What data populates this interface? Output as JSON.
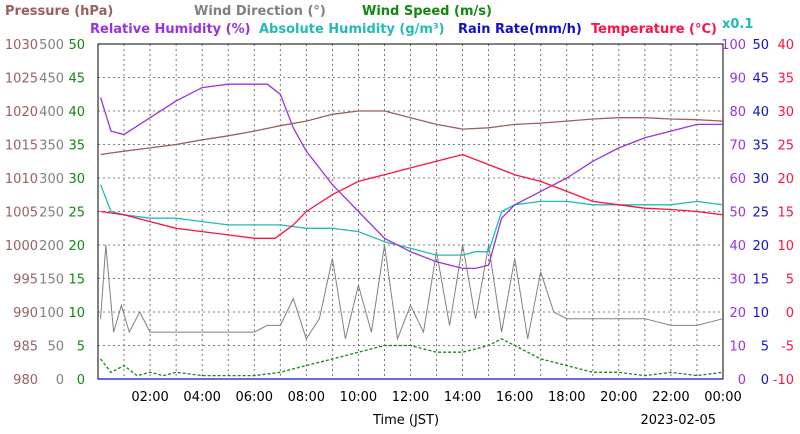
{
  "chart_data": {
    "type": "line",
    "date": "2023-02-05",
    "xlabel": "Time (JST)",
    "x_ticks": [
      "02:00",
      "04:00",
      "06:00",
      "08:00",
      "10:00",
      "12:00",
      "14:00",
      "16:00",
      "18:00",
      "20:00",
      "22:00",
      "00:00"
    ],
    "x_range_hours": [
      0,
      24
    ],
    "grid": true,
    "legend_entries": [
      {
        "label": "Pressure (hPa)",
        "color": "#9a6060"
      },
      {
        "label": "Wind Direction (°)",
        "color": "#808080"
      },
      {
        "label": "Wind Speed (m/s)",
        "color": "#118811"
      },
      {
        "label": "Relative Humidity (%)",
        "color": "#9933dd"
      },
      {
        "label": "Absolute Humidity (g/m³)",
        "color": "#22bbbb"
      },
      {
        "label": "Rain Rate(mm/h)",
        "color": "#1111cc"
      },
      {
        "label": "Temperature (°C)",
        "color": "#ff1144"
      }
    ],
    "ah_scale_note": "x0.1",
    "axes": {
      "pressure": {
        "color": "#9a6060",
        "ticks": [
          "1030",
          "1025",
          "1020",
          "1015",
          "1010",
          "1005",
          "1000",
          "995",
          "990",
          "985",
          "980"
        ],
        "range": [
          980,
          1030
        ]
      },
      "wind_direction": {
        "color": "#808080",
        "ticks": [
          "500",
          "450",
          "400",
          "350",
          "300",
          "250",
          "200",
          "150",
          "100",
          "50",
          "0"
        ],
        "range": [
          0,
          500
        ]
      },
      "wind_speed": {
        "color": "#118811",
        "ticks": [
          "50",
          "45",
          "40",
          "35",
          "30",
          "25",
          "20",
          "15",
          "10",
          "5",
          "0"
        ],
        "range": [
          0,
          50
        ]
      },
      "humidity": {
        "color": "#9933dd",
        "ticks": [
          "100",
          "90",
          "80",
          "70",
          "60",
          "50",
          "40",
          "30",
          "20",
          "10",
          "0"
        ],
        "range": [
          0,
          100
        ]
      },
      "rain_rate": {
        "color": "#1111cc",
        "ticks": [
          "50",
          "45",
          "40",
          "35",
          "30",
          "25",
          "20",
          "15",
          "10",
          "5",
          "0"
        ],
        "range": [
          0,
          50
        ]
      },
      "temperature": {
        "color": "#ff1144",
        "ticks": [
          "40",
          "35",
          "30",
          "25",
          "20",
          "15",
          "10",
          "5",
          "0",
          "-5",
          "-10"
        ],
        "range": [
          -10,
          40
        ]
      }
    },
    "series": [
      {
        "name": "Pressure (hPa)",
        "axis": "pressure",
        "color": "#9a6060",
        "x": [
          0.1,
          1,
          2,
          3,
          4,
          5,
          6,
          7,
          8,
          9,
          10,
          11,
          12,
          13,
          14,
          15,
          16,
          17,
          18,
          19,
          20,
          21,
          22,
          23,
          24
        ],
        "y": [
          1013.5,
          1014,
          1014.5,
          1015,
          1015.7,
          1016.3,
          1017,
          1017.8,
          1018.5,
          1019.5,
          1020,
          1020,
          1019,
          1018,
          1017.3,
          1017.5,
          1018,
          1018.2,
          1018.5,
          1018.8,
          1019,
          1019,
          1018.8,
          1018.7,
          1018.5
        ]
      },
      {
        "name": "Relative Humidity (%)",
        "axis": "humidity",
        "color": "#9933dd",
        "x": [
          0.1,
          0.5,
          1,
          2,
          3,
          4,
          5,
          6,
          6.5,
          7,
          7.5,
          8,
          8.5,
          9,
          9.5,
          10,
          11,
          12,
          13,
          14,
          14.5,
          15,
          15.5,
          16,
          17,
          18,
          19,
          20,
          21,
          22,
          23,
          24
        ],
        "y": [
          84,
          74,
          73,
          78,
          83,
          87,
          88,
          88,
          88,
          85,
          75,
          68,
          63,
          58,
          54,
          50,
          42,
          38,
          35,
          33,
          33,
          34,
          48,
          52,
          56,
          60,
          65,
          69,
          72,
          74,
          76,
          76
        ]
      },
      {
        "name": "Absolute Humidity (g/m³)",
        "axis": "humidity",
        "color": "#22bbbb",
        "x": [
          0.1,
          0.5,
          1,
          2,
          3,
          4,
          5,
          6,
          7,
          8,
          9,
          10,
          11,
          12,
          13,
          14,
          14.5,
          15,
          15.5,
          16,
          17,
          18,
          19,
          20,
          21,
          22,
          23,
          24
        ],
        "y": [
          58,
          50,
          49,
          48,
          48,
          47,
          46,
          46,
          46,
          45,
          45,
          44,
          41,
          39,
          37,
          37,
          38,
          38,
          50,
          52,
          53,
          53,
          52,
          52,
          52,
          52,
          53,
          52
        ]
      },
      {
        "name": "Temperature (°C)",
        "axis": "temperature",
        "color": "#ff1144",
        "x": [
          0.1,
          1,
          2,
          3,
          4,
          5,
          6,
          6.8,
          7.5,
          8,
          9,
          10,
          11,
          12,
          13,
          14,
          15,
          16,
          17,
          18,
          19,
          20,
          21,
          22,
          23,
          24
        ],
        "y": [
          15,
          14.5,
          13.5,
          12.5,
          12,
          11.5,
          11,
          11,
          13,
          15,
          17.5,
          19.5,
          20.5,
          21.5,
          22.5,
          23.5,
          22,
          20.5,
          19.5,
          18,
          16.5,
          16,
          15.5,
          15.3,
          15,
          14.5
        ]
      },
      {
        "name": "Wind Direction (°)",
        "axis": "wind_direction",
        "color": "#808080",
        "x": [
          0.1,
          0.3,
          0.6,
          0.9,
          1.2,
          1.6,
          2,
          2.5,
          3,
          3.5,
          4,
          5,
          6,
          6.5,
          7,
          7.5,
          8,
          8.5,
          9,
          9.5,
          10,
          10.5,
          11,
          11.5,
          12,
          12.5,
          13,
          13.5,
          14,
          14.5,
          15,
          15.5,
          16,
          16.5,
          17,
          17.5,
          18,
          19,
          20,
          21,
          22,
          23,
          24
        ],
        "y": [
          90,
          200,
          70,
          110,
          70,
          100,
          70,
          70,
          70,
          70,
          70,
          70,
          70,
          80,
          80,
          120,
          60,
          90,
          180,
          60,
          140,
          70,
          200,
          60,
          110,
          70,
          190,
          80,
          200,
          90,
          200,
          70,
          180,
          60,
          160,
          100,
          90,
          90,
          90,
          90,
          80,
          80,
          90
        ]
      },
      {
        "name": "Wind Speed (m/s)",
        "axis": "wind_speed",
        "color": "#118811",
        "x": [
          0.1,
          0.5,
          1,
          1.5,
          2,
          2.5,
          3,
          4,
          5,
          6,
          7,
          8,
          9,
          10,
          11,
          12,
          13,
          14,
          15,
          15.5,
          16,
          17,
          18,
          19,
          20,
          21,
          22,
          23,
          24
        ],
        "y": [
          3,
          1,
          2,
          0.5,
          1,
          0.5,
          1,
          0.5,
          0.5,
          0.5,
          1,
          2,
          3,
          4,
          5,
          5,
          4,
          4,
          5,
          6,
          5,
          3,
          2,
          1,
          1,
          0.5,
          1,
          0.5,
          1
        ]
      },
      {
        "name": "Rain Rate(mm/h)",
        "axis": "rain_rate",
        "color": "#1111cc",
        "x": [
          0,
          24
        ],
        "y": [
          0,
          0
        ]
      }
    ]
  }
}
